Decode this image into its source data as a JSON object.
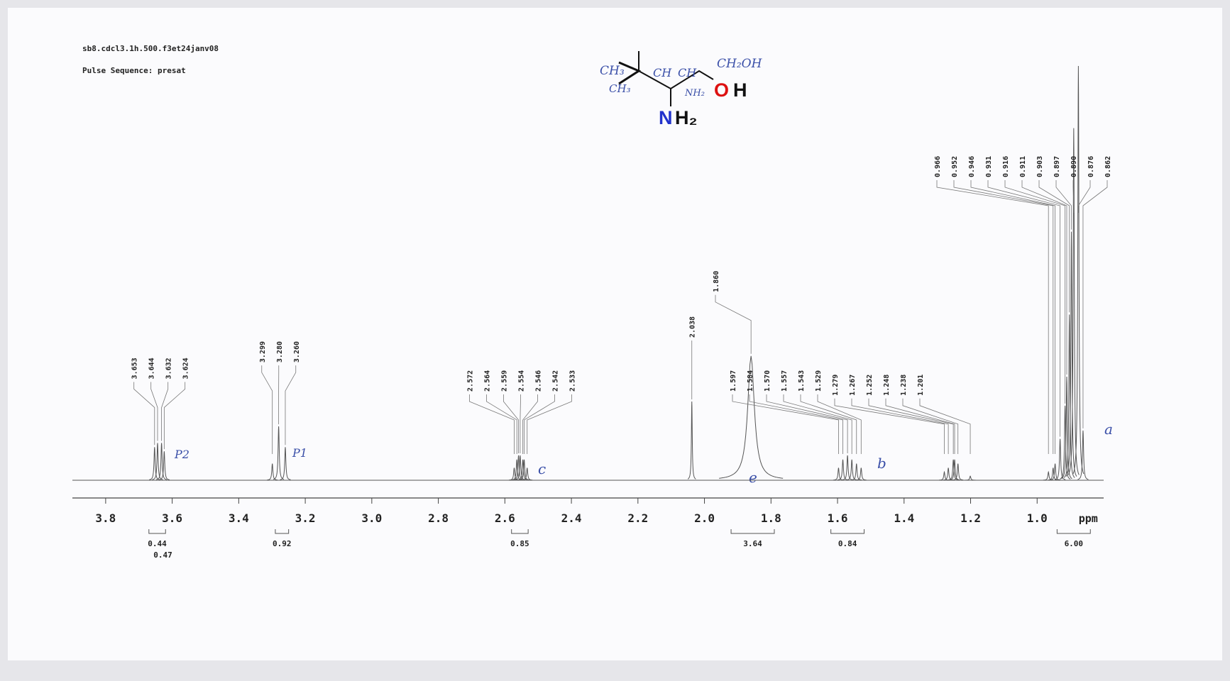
{
  "chart_data": {
    "type": "spectrum",
    "header": [
      "sb8.cdcl3.1h.500.f3et24janv08",
      "Pulse Sequence: presat"
    ],
    "x_unit": "ppm",
    "xlim": [
      3.9,
      0.8
    ],
    "xticks": [
      3.8,
      3.6,
      3.4,
      3.2,
      {
        "value": 3,
        "label": "3.0"
      },
      2.8,
      2.6,
      2.4,
      2.2,
      {
        "value": 2,
        "label": "2.0"
      },
      1.8,
      1.6,
      1.4,
      1.2,
      {
        "value": 1,
        "label": "1.0"
      }
    ],
    "ylim": [
      0,
      100
    ],
    "color": "#555555",
    "peaks": {
      "x": [
        3.653,
        3.644,
        3.632,
        3.624,
        3.299,
        3.28,
        3.26,
        2.572,
        2.564,
        2.559,
        2.554,
        2.546,
        2.542,
        2.533,
        2.038,
        1.86,
        1.597,
        1.584,
        1.57,
        1.557,
        1.543,
        1.529,
        1.279,
        1.267,
        1.252,
        1.248,
        1.238,
        1.201,
        0.966,
        0.952,
        0.946,
        0.931,
        0.916,
        0.911,
        0.903,
        0.897,
        0.89,
        0.876,
        0.862
      ],
      "x_labels": [
        "3.653",
        "3.644",
        "3.632",
        "3.624",
        "3.299",
        "3.280",
        "3.260",
        "2.572",
        "2.564",
        "2.559",
        "2.554",
        "2.546",
        "2.542",
        "2.533",
        "2.038",
        "1.860",
        "1.597",
        "1.584",
        "1.570",
        "1.557",
        "1.543",
        "1.529",
        "1.279",
        "1.267",
        "1.252",
        "1.248",
        "1.238",
        "1.201",
        "0.966",
        "0.952",
        "0.946",
        "0.931",
        "0.916",
        "0.911",
        "0.903",
        "0.897",
        "0.890",
        "0.876",
        "0.862"
      ],
      "values": [
        8,
        9,
        9,
        7,
        4,
        13,
        8,
        3,
        5,
        6,
        6,
        5,
        5,
        3,
        19,
        30,
        3,
        5,
        6,
        5,
        4,
        3,
        2,
        3,
        5,
        5,
        4,
        1,
        2,
        3,
        4,
        10,
        18,
        25,
        40,
        60,
        85,
        100,
        12
      ],
      "widths": [
        0.002,
        0.002,
        0.002,
        0.002,
        0.002,
        0.002,
        0.002,
        0.002,
        0.002,
        0.002,
        0.002,
        0.002,
        0.002,
        0.002,
        0.0015,
        0.012,
        0.002,
        0.002,
        0.002,
        0.002,
        0.002,
        0.002,
        0.002,
        0.002,
        0.002,
        0.002,
        0.002,
        0.002,
        0.002,
        0.002,
        0.002,
        0.002,
        0.002,
        0.002,
        0.002,
        0.002,
        0.002,
        0.002,
        0.002
      ]
    },
    "integrals": {
      "ranges": [
        [
          3.67,
          3.62
        ],
        [
          3.67,
          3.62
        ],
        [
          3.29,
          3.25
        ],
        [
          2.58,
          2.53
        ],
        [
          1.92,
          1.79
        ],
        [
          1.62,
          1.52
        ],
        [
          0.94,
          0.84
        ]
      ],
      "values": [
        0.44,
        0.47,
        0.92,
        0.85,
        3.64,
        0.84,
        6
      ],
      "value_labels": [
        "0.44",
        "0.47",
        "0.92",
        "0.85",
        "3.64",
        "0.84",
        "6.00"
      ]
    },
    "annotations": [
      "P2",
      "P1",
      "c",
      "e",
      "b",
      "a"
    ],
    "structure": {
      "n": "N",
      "h2": "H₂",
      "o": "O",
      "h": "H",
      "handwritten": [
        "CH₃",
        "CH₃",
        "CH",
        "CH",
        "CH₂OH",
        "NH₂"
      ]
    }
  }
}
